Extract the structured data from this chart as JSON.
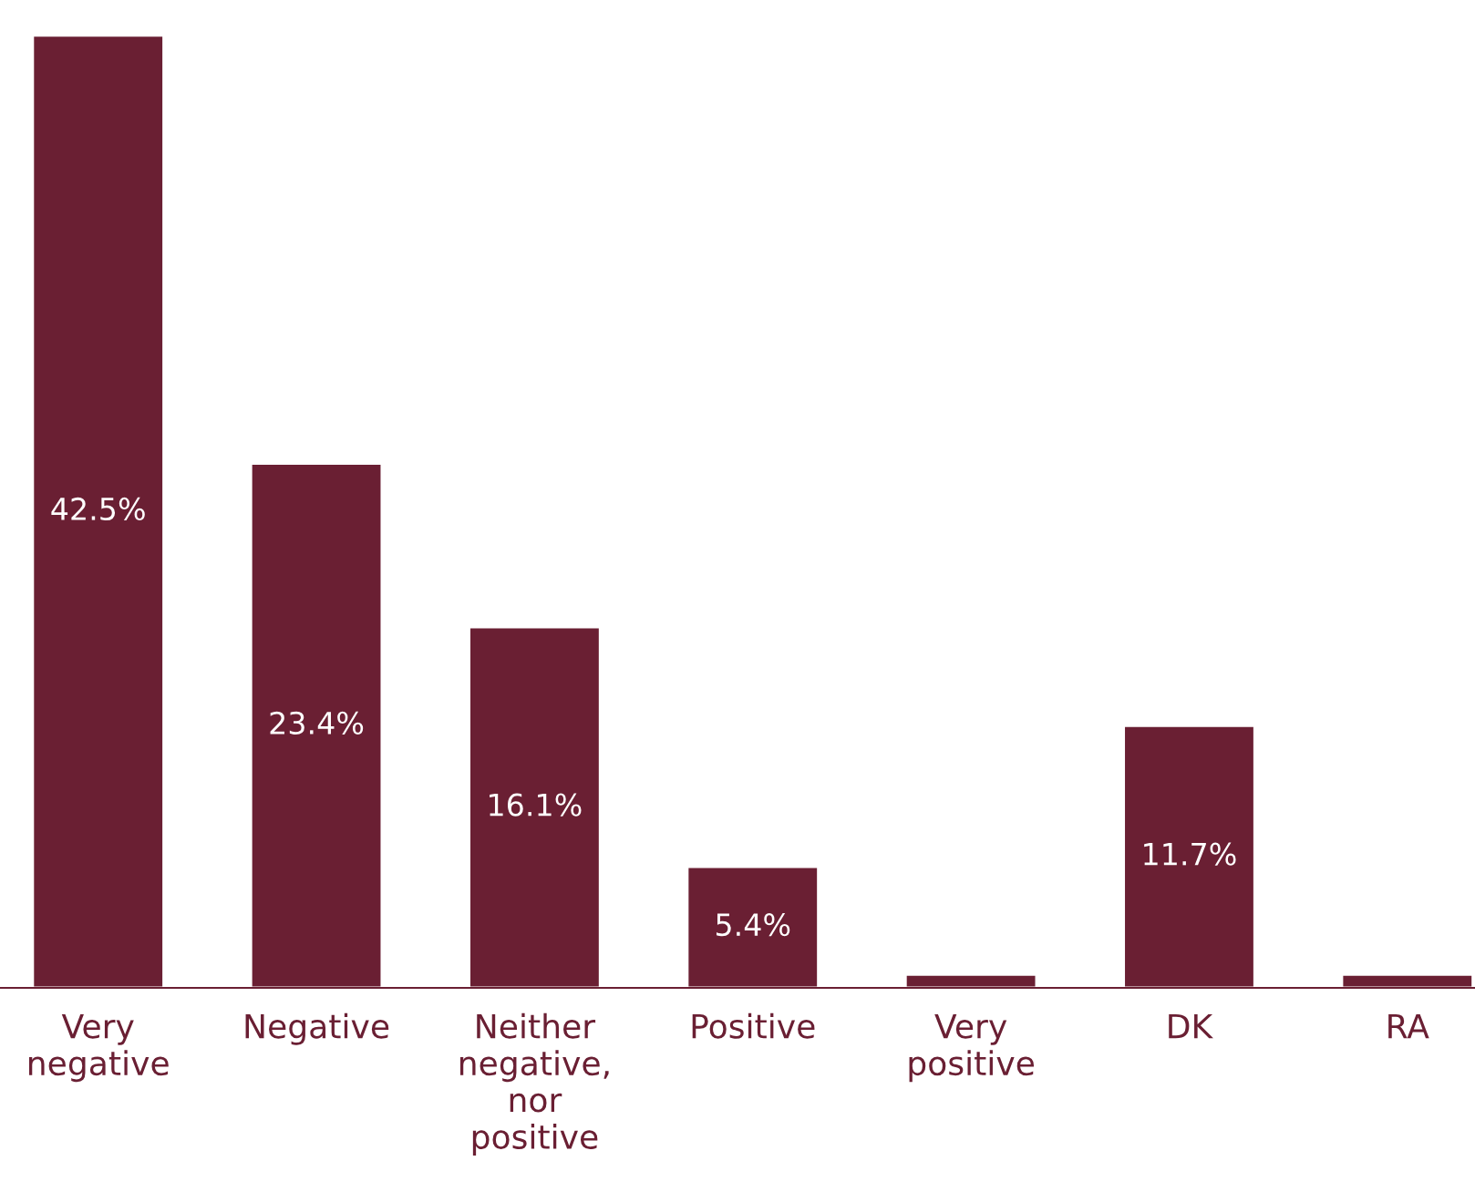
{
  "chart_data": {
    "type": "bar",
    "categories": [
      "Very\nnegative",
      "Negative",
      "Neither\nnegative,\nnor\npositive",
      "Positive",
      "Very\npositive",
      "DK",
      "RA"
    ],
    "values": [
      42.5,
      23.4,
      16.1,
      5.4,
      0.6,
      11.7,
      0.6
    ],
    "value_labels": [
      "42.5%",
      "23.4%",
      "16.1%",
      "5.4%",
      null,
      "11.7%",
      null
    ],
    "color": "#6a1f33",
    "grid": false,
    "legend": false,
    "tick_labels": "x"
  }
}
